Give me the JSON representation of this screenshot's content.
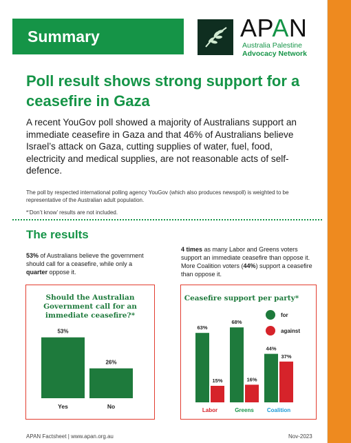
{
  "banner": {
    "title": "Summary"
  },
  "logo": {
    "name": "APAN",
    "line1": "Australia Palestine",
    "line2": "Advocacy Network",
    "icon": "olive-branch-icon"
  },
  "headline": "Poll result shows strong support for a ceasefire in Gaza",
  "intro": "A recent YouGov poll showed a majority of Australians support an immediate ceasefire in Gaza and that 46% of Australians believe Israel’s attack on Gaza, cutting supplies of water, fuel, food, electricity and medical supplies, are not reasonable acts of self-defence.",
  "note": "The poll by respected international polling agency YouGov (which also produces newspoll) is weighted to be representative of the Australian adult population.",
  "note2": "*‘Don’t know’ results are not included.",
  "results": {
    "title": "The results",
    "left_pct": "53%",
    "left_a": " of Australians believe the government should call for a ceasefire, while only a ",
    "left_quarter": "quarter",
    "left_b": " oppose it.",
    "right_times": "4 times",
    "right_a": " as many Labor and Greens voters support an immediate ceasefire than oppose it. More Coalition voters (",
    "right_pct": "44%",
    "right_b": ") support a ceasefire than oppose it."
  },
  "colors": {
    "green": "#159447",
    "dark_green": "#1e7a3c",
    "red": "#d6232a",
    "blue": "#1a9ad6",
    "orange": "#ee8a1f"
  },
  "chart_data": [
    {
      "type": "bar",
      "title": "Should the Australian Government call for an immediate ceasefire?*",
      "categories": [
        "Yes",
        "No"
      ],
      "values": [
        53,
        26
      ],
      "value_labels": [
        "53%",
        "26%"
      ],
      "ylim": [
        0,
        60
      ]
    },
    {
      "type": "bar",
      "title": "Ceasefire support per party*",
      "categories": [
        "Labor",
        "Greens",
        "Coalition"
      ],
      "series": [
        {
          "name": "for",
          "values": [
            63,
            68,
            44
          ],
          "labels": [
            "63%",
            "68%",
            "44%"
          ]
        },
        {
          "name": "against",
          "values": [
            15,
            16,
            37
          ],
          "labels": [
            "15%",
            "16%",
            "37%"
          ]
        }
      ],
      "legend": "top-right",
      "ylim": [
        0,
        75
      ]
    }
  ],
  "footer": {
    "left": "APAN Factsheet | www.apan.org.au",
    "right": "Nov-2023"
  }
}
